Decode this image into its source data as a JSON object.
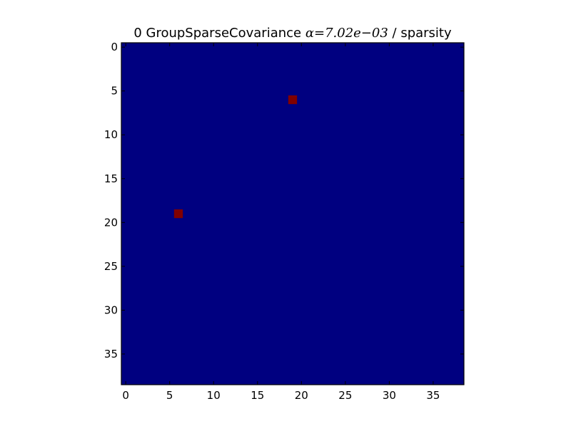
{
  "chart_data": {
    "type": "heatmap",
    "title_prefix": "0 GroupSparseCovariance ",
    "title_math": "α=7.02e−03",
    "title_suffix": " / sparsity",
    "matrix_size": 39,
    "background_value": 0,
    "highlight_value": 1,
    "highlights": [
      {
        "row": 6,
        "col": 19,
        "value": 1
      },
      {
        "row": 19,
        "col": 6,
        "value": 1
      }
    ],
    "x_ticks": [
      0,
      5,
      10,
      15,
      20,
      25,
      30,
      35
    ],
    "y_ticks": [
      0,
      5,
      10,
      15,
      20,
      25,
      30,
      35
    ],
    "x_range": [
      -0.5,
      38.5
    ],
    "y_range": [
      -0.5,
      38.5
    ],
    "y_axis_inverted": true,
    "grid": false,
    "colors": {
      "low": "#000080",
      "high": "#800000"
    }
  }
}
